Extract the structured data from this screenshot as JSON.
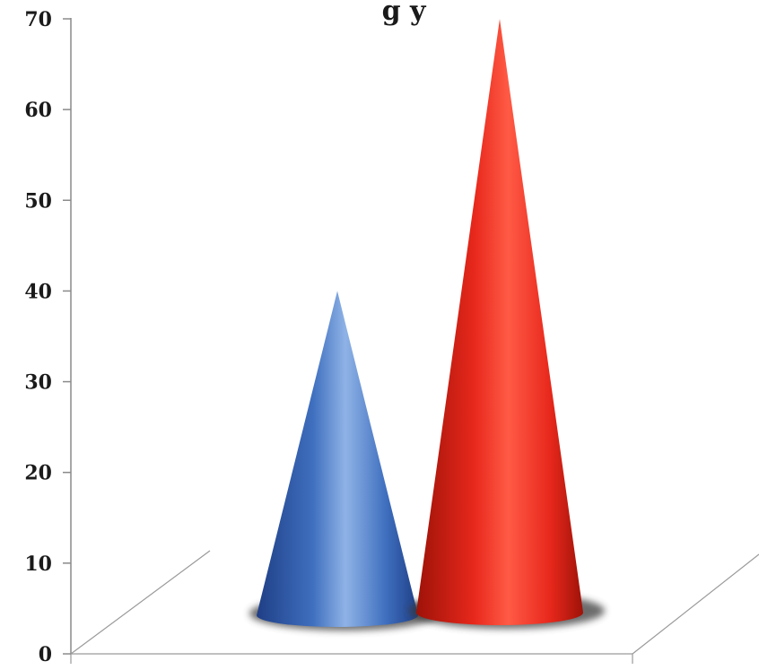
{
  "chart_data": {
    "type": "bar",
    "title_visible_fragment": "g y",
    "xlabel": "",
    "ylabel": "",
    "ylim": [
      0,
      70
    ],
    "yticks": [
      0,
      10,
      20,
      30,
      40,
      50,
      60,
      70
    ],
    "ytick_labels": [
      "0",
      "10",
      "20",
      "30",
      "40",
      "50",
      "60",
      "70"
    ],
    "series": [
      {
        "value": 40,
        "color": "#3f6fbf",
        "highlight": "#8fb3e6",
        "shade": "#1f3f86"
      },
      {
        "value": 70,
        "color": "#e8281c",
        "highlight": "#ff5a45",
        "shade": "#9e1208"
      }
    ]
  }
}
